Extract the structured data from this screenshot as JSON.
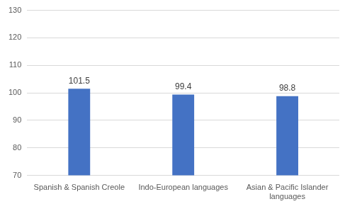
{
  "chart_data": {
    "type": "bar",
    "categories": [
      "Spanish & Spanish Creole",
      "Indo-European languages",
      "Asian & Pacific Islander languages"
    ],
    "values": [
      101.5,
      99.4,
      98.8
    ],
    "color": "#4472c4",
    "ylim": [
      70,
      130
    ],
    "yticks": [
      70,
      80,
      90,
      100,
      110,
      120,
      130
    ],
    "grid": true,
    "data_labels": true
  }
}
